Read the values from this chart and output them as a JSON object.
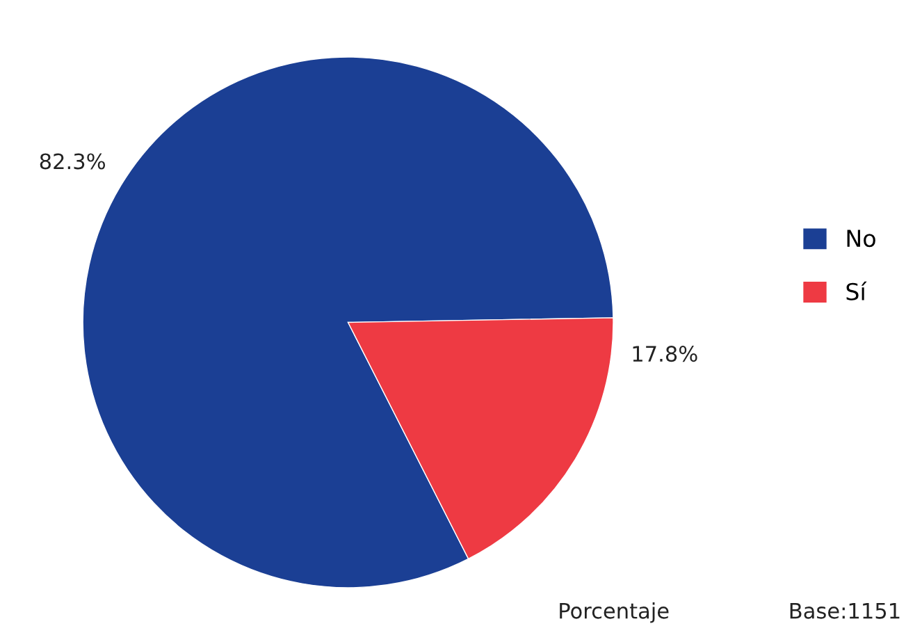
{
  "chart_data": {
    "type": "pie",
    "categories": [
      "No",
      "Sí"
    ],
    "values": [
      82.3,
      17.8
    ],
    "colors": [
      "#1b3f94",
      "#ee3a43"
    ],
    "value_labels": [
      "82.3%",
      "17.8%"
    ],
    "legend": "right",
    "annotations": [
      "Porcentaje",
      "Base:1151"
    ]
  }
}
